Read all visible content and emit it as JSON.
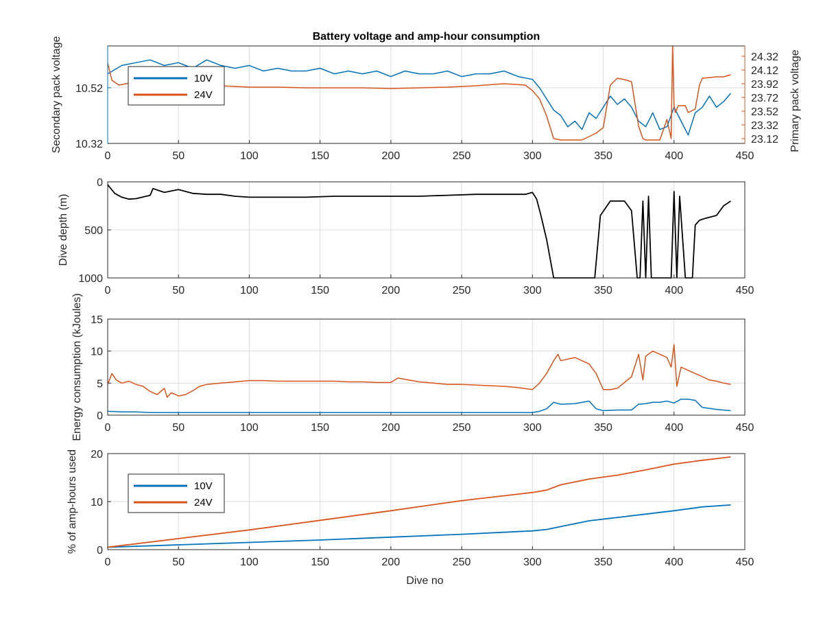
{
  "figure": {
    "title": "Battery voltage and amp-hour consumption",
    "xlabel": "Dive no"
  },
  "colors": {
    "blue": "#0072BD",
    "orange": "#D95319",
    "black": "#000000",
    "axis_left_voltage": "#0072BD",
    "axis_right_voltage": "#D95319"
  },
  "chart_data": [
    {
      "type": "line",
      "title": "Battery voltage and amp-hour consumption",
      "xlabel": "",
      "xlim": [
        0,
        450
      ],
      "xticks": [
        0,
        50,
        100,
        150,
        200,
        250,
        300,
        350,
        400,
        450
      ],
      "ylabel_left": "Secondary pack voltage",
      "ylim_left": [
        10.32,
        10.67
      ],
      "yticks_left": [
        10.32,
        10.52
      ],
      "ylabel_right": "Primary pack voltage",
      "ylim_right": [
        23.05,
        24.47
      ],
      "yticks_right": [
        23.12,
        23.32,
        23.52,
        23.72,
        23.92,
        24.12,
        24.32
      ],
      "grid": true,
      "legend": {
        "position": "top-left",
        "entries": [
          "10V",
          "24V"
        ]
      },
      "series": [
        {
          "name": "10V",
          "axis": "left",
          "color": "#0072BD",
          "x": [
            0,
            10,
            20,
            30,
            40,
            50,
            60,
            70,
            80,
            90,
            100,
            110,
            120,
            130,
            140,
            150,
            160,
            170,
            180,
            190,
            200,
            210,
            220,
            230,
            240,
            250,
            260,
            270,
            280,
            290,
            300,
            305,
            310,
            315,
            320,
            325,
            330,
            335,
            340,
            345,
            350,
            355,
            360,
            365,
            370,
            375,
            380,
            385,
            390,
            395,
            400,
            405,
            410,
            415,
            420,
            425,
            430,
            435,
            440
          ],
          "y": [
            10.57,
            10.6,
            10.61,
            10.62,
            10.6,
            10.61,
            10.59,
            10.62,
            10.6,
            10.59,
            10.6,
            10.58,
            10.59,
            10.58,
            10.58,
            10.59,
            10.57,
            10.58,
            10.57,
            10.58,
            10.56,
            10.58,
            10.57,
            10.57,
            10.58,
            10.56,
            10.57,
            10.57,
            10.58,
            10.56,
            10.55,
            10.52,
            10.48,
            10.44,
            10.42,
            10.38,
            10.4,
            10.37,
            10.43,
            10.41,
            10.45,
            10.49,
            10.46,
            10.48,
            10.45,
            10.4,
            10.38,
            10.43,
            10.37,
            10.38,
            10.45,
            10.4,
            10.35,
            10.43,
            10.45,
            10.49,
            10.45,
            10.47,
            10.5
          ]
        },
        {
          "name": "24V",
          "axis": "right",
          "color": "#D95319",
          "x": [
            0,
            3,
            8,
            20,
            40,
            60,
            80,
            100,
            120,
            140,
            160,
            180,
            200,
            220,
            240,
            260,
            280,
            295,
            300,
            305,
            310,
            315,
            320,
            330,
            335,
            340,
            345,
            350,
            355,
            360,
            365,
            370,
            375,
            378,
            380,
            385,
            390,
            395,
            398,
            399,
            400,
            401,
            403,
            408,
            410,
            415,
            418,
            420,
            425,
            430,
            435,
            440
          ],
          "y": [
            24.22,
            23.97,
            23.9,
            23.95,
            23.92,
            23.9,
            23.89,
            23.87,
            23.87,
            23.86,
            23.86,
            23.86,
            23.85,
            23.86,
            23.87,
            23.89,
            23.92,
            23.9,
            23.82,
            23.7,
            23.45,
            23.12,
            23.1,
            23.1,
            23.1,
            23.15,
            23.2,
            23.28,
            23.9,
            24.0,
            23.98,
            23.95,
            23.3,
            23.12,
            23.1,
            23.1,
            23.1,
            23.4,
            23.12,
            24.47,
            23.6,
            23.5,
            23.6,
            23.6,
            23.5,
            23.55,
            23.9,
            24.0,
            24.01,
            24.02,
            24.02,
            24.05
          ]
        }
      ]
    },
    {
      "type": "line",
      "xlim": [
        0,
        450
      ],
      "xticks": [
        0,
        50,
        100,
        150,
        200,
        250,
        300,
        350,
        400,
        450
      ],
      "ylabel": "Dive depth (m)",
      "ylim": [
        0,
        1000
      ],
      "y_reversed": true,
      "yticks": [
        0,
        500,
        1000
      ],
      "grid": true,
      "series": [
        {
          "color": "#000000",
          "x": [
            0,
            5,
            10,
            15,
            20,
            30,
            32,
            40,
            50,
            60,
            70,
            80,
            90,
            100,
            120,
            140,
            160,
            180,
            200,
            220,
            240,
            260,
            280,
            295,
            300,
            303,
            306,
            310,
            315,
            320,
            330,
            340,
            344,
            348,
            355,
            365,
            370,
            374,
            376,
            378,
            380,
            382,
            384,
            386,
            388,
            390,
            395,
            398,
            400,
            402,
            404,
            408,
            413,
            415,
            418,
            422,
            430,
            435,
            440
          ],
          "y": [
            30,
            120,
            160,
            180,
            175,
            140,
            70,
            110,
            80,
            120,
            130,
            130,
            150,
            160,
            160,
            160,
            150,
            150,
            150,
            150,
            140,
            130,
            130,
            130,
            110,
            180,
            350,
            600,
            1000,
            1000,
            1000,
            1000,
            1000,
            350,
            200,
            200,
            300,
            1000,
            1000,
            200,
            1000,
            150,
            1000,
            1000,
            1000,
            1000,
            1000,
            1000,
            100,
            1000,
            150,
            1000,
            1000,
            450,
            400,
            380,
            350,
            250,
            200
          ]
        }
      ]
    },
    {
      "type": "line",
      "xlim": [
        0,
        450
      ],
      "xticks": [
        0,
        50,
        100,
        150,
        200,
        250,
        300,
        350,
        400,
        450
      ],
      "ylabel": "Energy consumption (kJoules)",
      "ylim": [
        0,
        15
      ],
      "yticks": [
        0,
        5,
        10,
        15
      ],
      "grid": true,
      "series": [
        {
          "color": "#D95319",
          "x": [
            0,
            3,
            6,
            10,
            15,
            20,
            25,
            30,
            35,
            40,
            42,
            45,
            50,
            55,
            60,
            65,
            70,
            80,
            90,
            100,
            110,
            120,
            130,
            140,
            150,
            160,
            170,
            180,
            190,
            200,
            205,
            210,
            220,
            230,
            240,
            250,
            260,
            270,
            280,
            290,
            300,
            305,
            310,
            315,
            318,
            320,
            330,
            340,
            345,
            350,
            355,
            360,
            370,
            375,
            378,
            380,
            385,
            390,
            395,
            398,
            400,
            402,
            405,
            410,
            415,
            420,
            425,
            430,
            435,
            440
          ],
          "y": [
            4.8,
            6.5,
            5.5,
            5.0,
            5.3,
            4.8,
            4.5,
            3.7,
            3.2,
            4.2,
            2.8,
            3.5,
            3.0,
            3.2,
            3.8,
            4.5,
            4.8,
            5.0,
            5.2,
            5.4,
            5.4,
            5.3,
            5.3,
            5.3,
            5.3,
            5.3,
            5.2,
            5.2,
            5.1,
            5.1,
            5.8,
            5.6,
            5.2,
            5.0,
            4.8,
            4.8,
            4.7,
            4.6,
            4.5,
            4.3,
            4.0,
            5.0,
            6.5,
            8.5,
            9.5,
            8.5,
            9.0,
            8.0,
            6.5,
            4.0,
            4.0,
            4.2,
            6.0,
            9.5,
            5.5,
            9.2,
            10.0,
            9.5,
            9.0,
            7.5,
            11.0,
            4.5,
            7.5,
            7.0,
            6.5,
            6.0,
            5.5,
            5.3,
            5.0,
            4.8
          ]
        },
        {
          "color": "#0072BD",
          "x": [
            0,
            10,
            20,
            30,
            40,
            50,
            100,
            150,
            200,
            250,
            290,
            300,
            305,
            310,
            315,
            320,
            330,
            340,
            345,
            350,
            360,
            370,
            375,
            380,
            385,
            390,
            395,
            400,
            405,
            410,
            415,
            420,
            430,
            440
          ],
          "y": [
            0.6,
            0.5,
            0.5,
            0.4,
            0.4,
            0.4,
            0.4,
            0.4,
            0.4,
            0.4,
            0.4,
            0.4,
            0.6,
            1.0,
            2.0,
            1.7,
            1.8,
            2.2,
            1.0,
            0.7,
            0.8,
            0.8,
            1.7,
            1.8,
            2.0,
            2.0,
            2.2,
            1.9,
            2.5,
            2.5,
            2.3,
            1.2,
            0.9,
            0.7
          ]
        }
      ]
    },
    {
      "type": "line",
      "xlim": [
        0,
        450
      ],
      "xticks": [
        0,
        50,
        100,
        150,
        200,
        250,
        300,
        350,
        400,
        450
      ],
      "xlabel": "Dive no",
      "ylabel": "% of amp-hours used",
      "ylim": [
        0,
        20
      ],
      "yticks": [
        0,
        10,
        20
      ],
      "grid": true,
      "legend": {
        "position": "top-left",
        "entries": [
          "10V",
          "24V"
        ]
      },
      "series": [
        {
          "name": "10V",
          "color": "#0072BD",
          "x": [
            0,
            50,
            100,
            150,
            200,
            250,
            300,
            310,
            320,
            340,
            360,
            380,
            400,
            420,
            440
          ],
          "y": [
            0.5,
            1.0,
            1.5,
            2.0,
            2.6,
            3.2,
            3.9,
            4.2,
            4.8,
            6.0,
            6.7,
            7.4,
            8.1,
            8.9,
            9.3
          ]
        },
        {
          "name": "24V",
          "color": "#D95319",
          "x": [
            0,
            50,
            100,
            150,
            200,
            250,
            300,
            310,
            320,
            340,
            360,
            380,
            400,
            420,
            440
          ],
          "y": [
            0.5,
            2.3,
            4.1,
            6.1,
            8.1,
            10.2,
            11.9,
            12.4,
            13.5,
            14.7,
            15.5,
            16.6,
            17.8,
            18.6,
            19.3
          ]
        }
      ]
    }
  ]
}
